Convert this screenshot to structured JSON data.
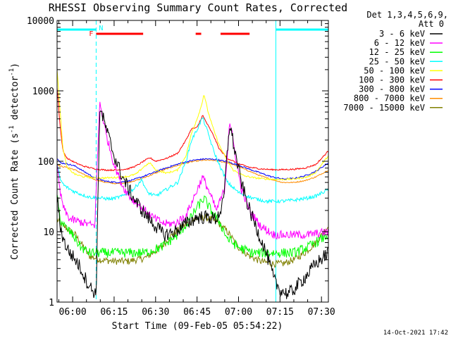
{
  "chart_data": {
    "type": "line",
    "title": "RHESSI Observing Summary Count Rates, Corrected",
    "xlabel": "Start Time (09-Feb-05 05:54:22)",
    "ylabel_main": "Corrected Count Rate (s",
    "ylabel_sup1": "-1",
    "ylabel_mid": " detector",
    "ylabel_sup2": "-1",
    "ylabel_end": ")",
    "yscale": "log",
    "ylim": [
      1,
      10000
    ],
    "xlim_minutes": [
      -5.63,
      92.5
    ],
    "x_ticks": [
      {
        "label": "06:00",
        "minutes": 0
      },
      {
        "label": "06:15",
        "minutes": 15
      },
      {
        "label": "06:30",
        "minutes": 30
      },
      {
        "label": "06:45",
        "minutes": 45
      },
      {
        "label": "07:00",
        "minutes": 60
      },
      {
        "label": "07:15",
        "minutes": 75
      },
      {
        "label": "07:30",
        "minutes": 90
      }
    ],
    "y_ticks": [
      {
        "label": "1",
        "value": 1
      },
      {
        "label": "10",
        "value": 10
      },
      {
        "label": "100",
        "value": 100
      },
      {
        "label": "1000",
        "value": 1000
      },
      {
        "label": "10000",
        "value": 10000
      }
    ],
    "legend_header": [
      "Det 1,3,4,5,6,9,",
      "Att 0"
    ],
    "legend_position": "right",
    "timestamp": "14-Oct-2021 17:42",
    "flags": {
      "flare_label": "F",
      "night_label": "N",
      "flare_color": "#ff0000",
      "night_color": "#00ffff",
      "night_intervals": [
        [
          -5.63,
          8.5
        ],
        [
          73.5,
          92.5
        ]
      ],
      "flare_intervals": [
        [
          8.5,
          25.5
        ],
        [
          44.5,
          46.5
        ],
        [
          53.5,
          64.0
        ]
      ],
      "dashed_markers": [
        [
          -5.63,
          8.5
        ],
        [
          73.5,
          92.5
        ]
      ]
    },
    "series": [
      {
        "name": "3 - 6 keV",
        "color": "#000000",
        "noise": 0.1,
        "points": [
          [
            -5.6,
            30
          ],
          [
            -4.5,
            12
          ],
          [
            -3,
            7
          ],
          [
            -1,
            5
          ],
          [
            1,
            4
          ],
          [
            3,
            3
          ],
          [
            5,
            2
          ],
          [
            7,
            1.5
          ],
          [
            8.5,
            1.3
          ],
          [
            9.8,
            600
          ],
          [
            12,
            300
          ],
          [
            15,
            120
          ],
          [
            18,
            60
          ],
          [
            22,
            30
          ],
          [
            26,
            18
          ],
          [
            30,
            12
          ],
          [
            33,
            9
          ],
          [
            37,
            10
          ],
          [
            41,
            13
          ],
          [
            45,
            16
          ],
          [
            49,
            16
          ],
          [
            52,
            15
          ],
          [
            54.5,
            25
          ],
          [
            56.8,
            350
          ],
          [
            58.5,
            150
          ],
          [
            61,
            50
          ],
          [
            64,
            20
          ],
          [
            67,
            10
          ],
          [
            70,
            5
          ],
          [
            73,
            2
          ],
          [
            75,
            1.5
          ],
          [
            78,
            1.3
          ],
          [
            80,
            1.5
          ],
          [
            85,
            2.5
          ],
          [
            88,
            3.5
          ],
          [
            92.5,
            5
          ]
        ]
      },
      {
        "name": "6 - 12 keV",
        "color": "#ff00ff",
        "noise": 0.06,
        "points": [
          [
            -5.6,
            80
          ],
          [
            -4.5,
            35
          ],
          [
            -3,
            20
          ],
          [
            -1,
            15
          ],
          [
            2,
            14
          ],
          [
            5,
            13
          ],
          [
            8,
            12
          ],
          [
            9.8,
            700
          ],
          [
            12,
            250
          ],
          [
            15,
            90
          ],
          [
            18,
            45
          ],
          [
            21,
            30
          ],
          [
            25,
            22
          ],
          [
            29,
            16
          ],
          [
            33,
            13
          ],
          [
            37,
            13
          ],
          [
            41,
            17
          ],
          [
            44.5,
            35
          ],
          [
            47,
            60
          ],
          [
            49,
            40
          ],
          [
            52,
            20
          ],
          [
            55,
            40
          ],
          [
            56.8,
            380
          ],
          [
            58.5,
            150
          ],
          [
            61,
            40
          ],
          [
            64,
            20
          ],
          [
            68,
            12
          ],
          [
            73,
            9
          ],
          [
            78,
            9
          ],
          [
            85,
            9
          ],
          [
            92.5,
            10
          ]
        ]
      },
      {
        "name": "12 - 25 keV",
        "color": "#00ff00",
        "noise": 0.07,
        "points": [
          [
            -5.6,
            30
          ],
          [
            -4.5,
            15
          ],
          [
            -3,
            12
          ],
          [
            0,
            9
          ],
          [
            3,
            6
          ],
          [
            6,
            5
          ],
          [
            10,
            5
          ],
          [
            15,
            5
          ],
          [
            20,
            5
          ],
          [
            26,
            5
          ],
          [
            32,
            6
          ],
          [
            38,
            9
          ],
          [
            42,
            14
          ],
          [
            45,
            22
          ],
          [
            47.5,
            30
          ],
          [
            50,
            20
          ],
          [
            53,
            14
          ],
          [
            56,
            8
          ],
          [
            60,
            6
          ],
          [
            65,
            5
          ],
          [
            70,
            5
          ],
          [
            75,
            5
          ],
          [
            80,
            5
          ],
          [
            85,
            6
          ],
          [
            92.5,
            9
          ]
        ]
      },
      {
        "name": "25 - 50 keV",
        "color": "#00ffff",
        "noise": 0.025,
        "points": [
          [
            -5.6,
            90
          ],
          [
            -4.5,
            55
          ],
          [
            -3,
            45
          ],
          [
            0,
            38
          ],
          [
            3,
            34
          ],
          [
            6,
            31
          ],
          [
            10,
            30
          ],
          [
            14,
            29
          ],
          [
            18,
            32
          ],
          [
            22,
            40
          ],
          [
            25,
            55
          ],
          [
            27,
            36
          ],
          [
            30,
            32
          ],
          [
            34,
            40
          ],
          [
            38,
            50
          ],
          [
            41,
            100
          ],
          [
            43,
            200
          ],
          [
            45,
            280
          ],
          [
            47,
            420
          ],
          [
            49,
            250
          ],
          [
            51,
            140
          ],
          [
            53,
            90
          ],
          [
            56,
            50
          ],
          [
            60,
            36
          ],
          [
            65,
            30
          ],
          [
            70,
            27
          ],
          [
            75,
            27
          ],
          [
            80,
            28
          ],
          [
            85,
            30
          ],
          [
            88,
            32
          ],
          [
            92.5,
            40
          ]
        ]
      },
      {
        "name": "50 - 100 keV",
        "color": "#ffff00",
        "noise": 0.012,
        "points": [
          [
            -5.6,
            2000
          ],
          [
            -4.5,
            500
          ],
          [
            -3.5,
            150
          ],
          [
            -2,
            80
          ],
          [
            1,
            65
          ],
          [
            4,
            60
          ],
          [
            8,
            58
          ],
          [
            12,
            58
          ],
          [
            16,
            59
          ],
          [
            20,
            61
          ],
          [
            23,
            66
          ],
          [
            26,
            85
          ],
          [
            28,
            95
          ],
          [
            30,
            75
          ],
          [
            34,
            68
          ],
          [
            38,
            75
          ],
          [
            41,
            120
          ],
          [
            43,
            250
          ],
          [
            45,
            400
          ],
          [
            46.5,
            600
          ],
          [
            47.5,
            900
          ],
          [
            49,
            500
          ],
          [
            51,
            280
          ],
          [
            53,
            170
          ],
          [
            55.5,
            110
          ],
          [
            58,
            75
          ],
          [
            62,
            62
          ],
          [
            66,
            58
          ],
          [
            70,
            56
          ],
          [
            75,
            55
          ],
          [
            80,
            56
          ],
          [
            85,
            60
          ],
          [
            88,
            70
          ],
          [
            92.5,
            120
          ]
        ]
      },
      {
        "name": "100 - 300 keV",
        "color": "#ff0000",
        "noise": 0.01,
        "points": [
          [
            -5.6,
            1100
          ],
          [
            -4.5,
            300
          ],
          [
            -3.5,
            140
          ],
          [
            -2,
            110
          ],
          [
            1,
            95
          ],
          [
            4,
            85
          ],
          [
            8,
            78
          ],
          [
            12,
            75
          ],
          [
            16,
            75
          ],
          [
            20,
            78
          ],
          [
            23,
            86
          ],
          [
            26,
            102
          ],
          [
            28,
            112
          ],
          [
            30,
            100
          ],
          [
            34,
            110
          ],
          [
            38,
            130
          ],
          [
            41,
            200
          ],
          [
            43,
            290
          ],
          [
            45,
            300
          ],
          [
            47,
            450
          ],
          [
            49,
            320
          ],
          [
            51,
            230
          ],
          [
            53,
            150
          ],
          [
            56,
            110
          ],
          [
            60,
            92
          ],
          [
            64,
            82
          ],
          [
            68,
            78
          ],
          [
            72,
            76
          ],
          [
            76,
            76
          ],
          [
            80,
            77
          ],
          [
            84,
            80
          ],
          [
            88,
            90
          ],
          [
            92.5,
            140
          ]
        ]
      },
      {
        "name": "300 - 800 keV",
        "color": "#0000ff",
        "noise": 0.01,
        "points": [
          [
            -5.6,
            110
          ],
          [
            -4.5,
            95
          ],
          [
            -2,
            92
          ],
          [
            1,
            85
          ],
          [
            4,
            72
          ],
          [
            8,
            58
          ],
          [
            12,
            52
          ],
          [
            16,
            50
          ],
          [
            20,
            52
          ],
          [
            24,
            58
          ],
          [
            28,
            66
          ],
          [
            32,
            76
          ],
          [
            36,
            86
          ],
          [
            40,
            96
          ],
          [
            44,
            104
          ],
          [
            48,
            108
          ],
          [
            52,
            106
          ],
          [
            56,
            98
          ],
          [
            60,
            88
          ],
          [
            64,
            77
          ],
          [
            68,
            68
          ],
          [
            72,
            60
          ],
          [
            76,
            56
          ],
          [
            80,
            57
          ],
          [
            84,
            62
          ],
          [
            88,
            72
          ],
          [
            92.5,
            95
          ]
        ]
      },
      {
        "name": "800 - 7000 keV",
        "color": "#ff8c00",
        "noise": 0.008,
        "points": [
          [
            -5.6,
            90
          ],
          [
            -4.5,
            85
          ],
          [
            -2,
            82
          ],
          [
            1,
            75
          ],
          [
            4,
            65
          ],
          [
            8,
            55
          ],
          [
            12,
            50
          ],
          [
            16,
            48
          ],
          [
            20,
            50
          ],
          [
            24,
            55
          ],
          [
            28,
            63
          ],
          [
            32,
            73
          ],
          [
            36,
            83
          ],
          [
            40,
            92
          ],
          [
            44,
            100
          ],
          [
            48,
            104
          ],
          [
            52,
            102
          ],
          [
            56,
            95
          ],
          [
            60,
            84
          ],
          [
            64,
            72
          ],
          [
            68,
            62
          ],
          [
            72,
            55
          ],
          [
            76,
            50
          ],
          [
            80,
            50
          ],
          [
            84,
            53
          ],
          [
            88,
            60
          ],
          [
            92.5,
            75
          ]
        ]
      },
      {
        "name": "7000 - 15000 keV",
        "color": "#808000",
        "noise": 0.05,
        "points": [
          [
            -5.6,
            15
          ],
          [
            -4.5,
            13
          ],
          [
            -2,
            11
          ],
          [
            1,
            9
          ],
          [
            4,
            6
          ],
          [
            6,
            4.5
          ],
          [
            10,
            4
          ],
          [
            15,
            3.8
          ],
          [
            20,
            3.8
          ],
          [
            26,
            4.2
          ],
          [
            32,
            6
          ],
          [
            36,
            9
          ],
          [
            40,
            12
          ],
          [
            44,
            15
          ],
          [
            48,
            16
          ],
          [
            52,
            14
          ],
          [
            56,
            10
          ],
          [
            60,
            6
          ],
          [
            64,
            4.5
          ],
          [
            68,
            3.8
          ],
          [
            72,
            3.5
          ],
          [
            76,
            3.5
          ],
          [
            80,
            4
          ],
          [
            84,
            5
          ],
          [
            88,
            7
          ],
          [
            92.5,
            12
          ]
        ]
      }
    ]
  }
}
